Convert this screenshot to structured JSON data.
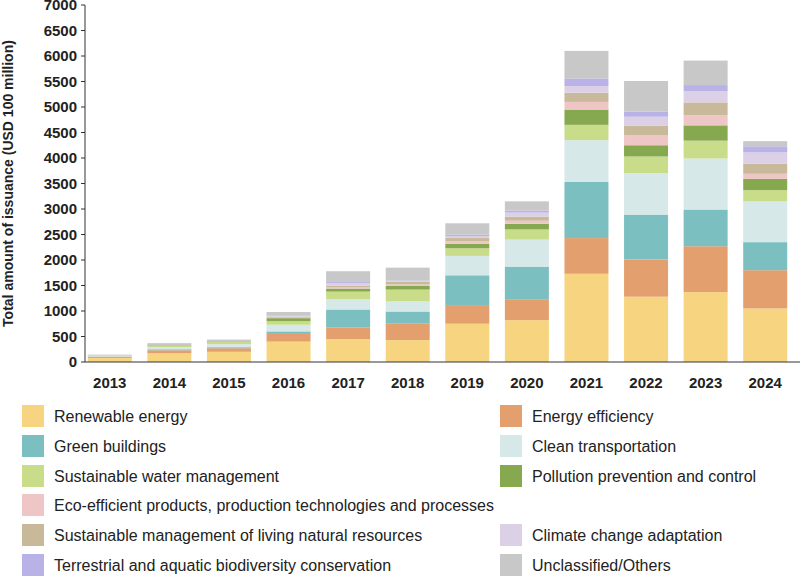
{
  "chart_data": {
    "type": "bar",
    "stacked": true,
    "grid": false,
    "legend": "bottom",
    "y_label": "Total amount of issuance (USD 100 million)",
    "categories": [
      "2013",
      "2014",
      "2015",
      "2016",
      "2017",
      "2018",
      "2019",
      "2020",
      "2021",
      "2022",
      "2023",
      "2024"
    ],
    "ylim": [
      0,
      7000
    ],
    "yticks": [
      0,
      500,
      1000,
      1500,
      2000,
      2500,
      3000,
      3500,
      4000,
      4500,
      5000,
      5500,
      6000,
      6500,
      7000
    ],
    "series": [
      {
        "name": "Renewable energy",
        "color": "#f7d580",
        "values": [
          80,
          170,
          200,
          400,
          450,
          430,
          750,
          820,
          1730,
          1280,
          1370,
          1050
        ]
      },
      {
        "name": "Energy efficiency",
        "color": "#e3a06e",
        "values": [
          25,
          60,
          70,
          150,
          230,
          330,
          350,
          400,
          700,
          730,
          900,
          750
        ]
      },
      {
        "name": "Green buildings",
        "color": "#7bbfc0",
        "values": [
          5,
          20,
          20,
          50,
          350,
          230,
          600,
          650,
          1100,
          880,
          720,
          550
        ]
      },
      {
        "name": "Clean transportation",
        "color": "#d6e8e8",
        "values": [
          10,
          40,
          60,
          130,
          200,
          200,
          380,
          530,
          820,
          810,
          1000,
          800
        ]
      },
      {
        "name": "Sustainable water management",
        "color": "#c9dc8a",
        "values": [
          5,
          30,
          40,
          70,
          150,
          230,
          150,
          200,
          300,
          330,
          350,
          220
        ]
      },
      {
        "name": "Pollution prevention and control",
        "color": "#86a84f",
        "values": [
          0,
          10,
          10,
          60,
          60,
          70,
          90,
          110,
          300,
          220,
          300,
          220
        ]
      },
      {
        "name": "Eco-efficient products, production technologies and processes",
        "color": "#eec6c6",
        "values": [
          0,
          0,
          0,
          10,
          20,
          30,
          50,
          60,
          150,
          200,
          200,
          100
        ]
      },
      {
        "name": "Sustainable management of living natural resources",
        "color": "#c9b99b",
        "values": [
          0,
          0,
          10,
          20,
          40,
          50,
          60,
          80,
          180,
          180,
          250,
          200
        ]
      },
      {
        "name": "Climate change adaptation",
        "color": "#dcd0e6",
        "values": [
          0,
          0,
          0,
          10,
          50,
          20,
          40,
          80,
          130,
          180,
          220,
          220
        ]
      },
      {
        "name": "Terrestrial and aquatic biodiversity conservation",
        "color": "#b9b2e6",
        "values": [
          0,
          0,
          0,
          5,
          20,
          10,
          30,
          40,
          150,
          100,
          120,
          120
        ]
      },
      {
        "name": "Unclassified/Others",
        "color": "#c8c8c8",
        "values": [
          20,
          40,
          30,
          75,
          210,
          250,
          220,
          180,
          540,
          600,
          480,
          100
        ]
      }
    ]
  }
}
